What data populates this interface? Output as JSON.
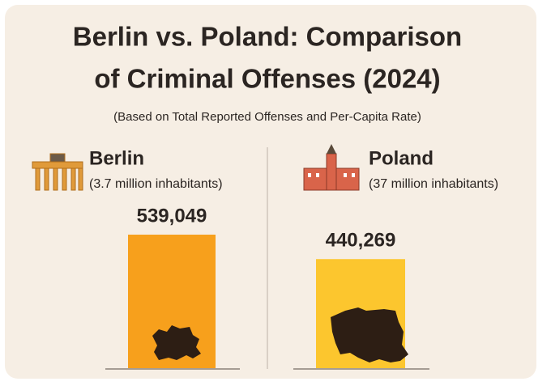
{
  "chart_data": {
    "type": "bar",
    "title_lines": [
      "Berlin vs. Poland: Comparison",
      "of Criminal Offenses (2024)"
    ],
    "subtitle": "(Based on Total Reported Offenses and Per-Capita Rate)",
    "categories": [
      "Berlin",
      "Poland"
    ],
    "category_notes": [
      "(3.7 million inhabitants)",
      "(37 million inhabitants)"
    ],
    "values": [
      539049,
      440269
    ],
    "value_labels": [
      "539,049",
      "440,269"
    ],
    "colors": [
      "#f7a01c",
      "#fcc62e"
    ]
  }
}
